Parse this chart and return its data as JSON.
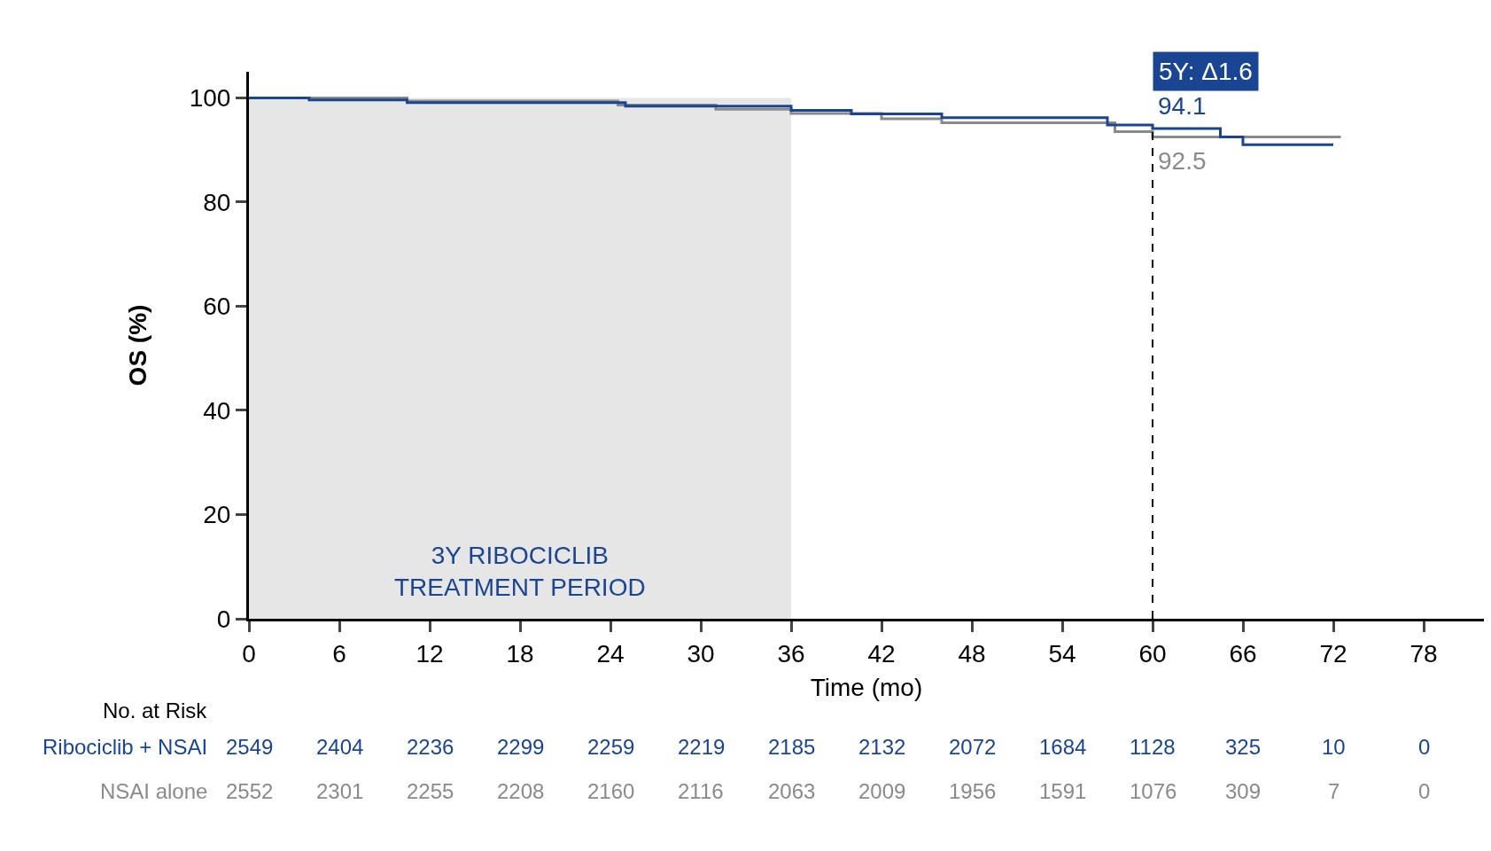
{
  "chart_data": {
    "type": "step",
    "xlabel": "Time (mo)",
    "ylabel": "OS (%)",
    "xlim": [
      0,
      82
    ],
    "xticks": [
      0,
      6,
      12,
      18,
      24,
      30,
      36,
      42,
      48,
      54,
      60,
      66,
      72,
      78
    ],
    "ylim": [
      0,
      105
    ],
    "yticks": [
      0,
      20,
      40,
      60,
      80,
      100
    ],
    "grid": false,
    "legend": false,
    "marker": "none",
    "line_style": "solid",
    "series": [
      {
        "name": "NSAI alone",
        "color": "#8a8a8a",
        "x": [
          0,
          10.5,
          24.5,
          31,
          36,
          42,
          46,
          57.5,
          60,
          72.5
        ],
        "values": [
          100,
          99.4,
          98.6,
          97.8,
          97.0,
          96.0,
          95.2,
          93.5,
          92.5,
          92.5
        ]
      },
      {
        "name": "Ribociclib + NSAI",
        "color": "#1a4592",
        "x": [
          0,
          4,
          10.5,
          25,
          36,
          40,
          46,
          57,
          60,
          64.5,
          66,
          72
        ],
        "values": [
          100,
          99.6,
          99.1,
          98.4,
          97.6,
          96.9,
          96.2,
          94.8,
          94.1,
          92.5,
          91.0,
          91.0
        ]
      }
    ],
    "ref_lines": [
      {
        "axis": "x",
        "value": 60,
        "line_style": "dashed",
        "color": "#000000"
      }
    ],
    "bands": [
      {
        "axis": "x",
        "from": 0,
        "to": 36,
        "label": "3Y RIBOCICLIB\nTREATMENT PERIOD",
        "color": "#e6e6e6"
      }
    ],
    "annotations": [
      "5Y: Δ1.6",
      {
        "text": "94.1",
        "x": 60,
        "y": 94.1
      },
      {
        "text": "92.5",
        "x": 60,
        "y": 92.5
      },
      "No. at Risk",
      "2549",
      "2404",
      "2236",
      "2299",
      "2259",
      "2219",
      "2185",
      "2132",
      "2072",
      "1684",
      "1128",
      "325",
      "10",
      "0",
      "2552",
      "2301",
      "2255",
      "2208",
      "2160",
      "2116",
      "2063",
      "2009",
      "1956",
      "1591",
      "1076",
      "309",
      "7",
      "0"
    ]
  }
}
